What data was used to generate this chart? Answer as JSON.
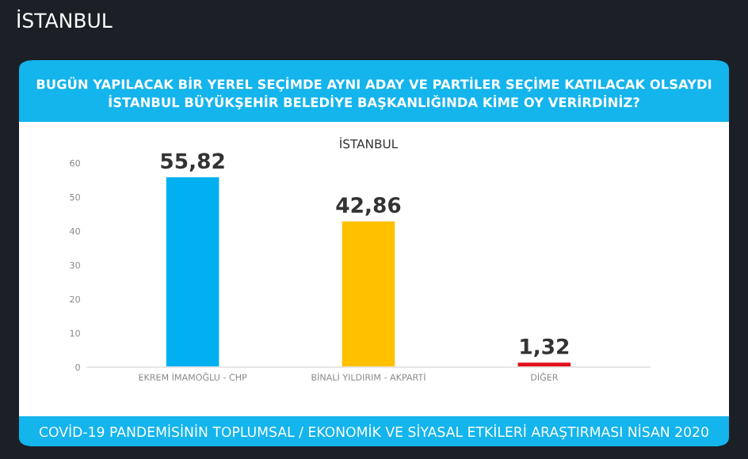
{
  "chart_data": {
    "type": "bar",
    "title": "BUGÜN YAPILACAK BİR YEREL SEÇİMDE AYNI ADAY VE PARTİLER SEÇİME KATILACAK OLSAYDI İSTANBUL BÜYÜKŞEHİR BELEDİYE BAŞKANLIĞINDA KİME OY VERİRDİNİZ?",
    "subtitle": "İSTANBUL",
    "categories": [
      "EKREM İMAMOĞLU - CHP",
      "BİNALİ YILDIRIM - AKPARTİ",
      "DİĞER"
    ],
    "values": [
      55.82,
      42.86,
      1.32
    ],
    "colors": [
      "#00b0f0",
      "#ffc000",
      "#e3101b"
    ],
    "value_labels": [
      "55,82",
      "42,86",
      "1,32"
    ],
    "ylim": [
      0,
      60
    ],
    "yticks": [
      0,
      10,
      20,
      30,
      40,
      50,
      60
    ],
    "grid": false,
    "legend": false,
    "annotations": [
      "İSTANBUL",
      "COVİD-19 PANDEMİSİNİN TOPLUMSAL / EKONOMİK VE SİYASAL ETKİLERİ ARAŞTIRMASI NİSAN 2020"
    ]
  }
}
